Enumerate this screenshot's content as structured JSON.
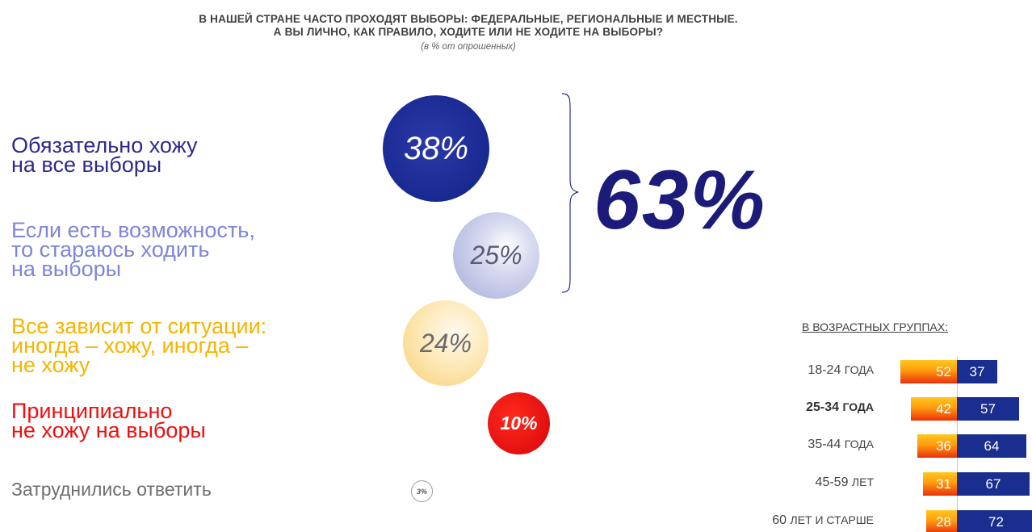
{
  "header": {
    "title_line1": "В нашей стране часто проходят выборы: федеральные, региональные и местные.",
    "title_line2": "А Вы лично, как правило, ходите или не ходите на выборы?",
    "subtitle": "(в % от опрошенных)"
  },
  "colors": {
    "dark_blue": "#1a2891",
    "light_blue": "#a6abd9",
    "yellow": "#f6cf73",
    "red": "#e31010",
    "gray": "#9a9a9a",
    "total_color": "#1c1b7a"
  },
  "chart_data": [
    {
      "type": "bubble",
      "categories": [
        "Обязательно хожу на все выборы",
        "Если есть возможность, то стараюсь ходить на выборы",
        "Все зависит от ситуации: иногда – хожу, иногда – не хожу",
        "Принципиально не хожу на выборы",
        "Затруднились ответить"
      ],
      "values": [
        38,
        25,
        24,
        10,
        3
      ],
      "value_labels": [
        "38%",
        "25%",
        "24%",
        "10%",
        "3%"
      ],
      "answer_texts": [
        "Обязательно хожу\nна все выборы",
        "Если есть возможность,\nто стараюсь ходить\nна выборы",
        "Все зависит от ситуации:\nиногда – хожу, иногда –\nне хожу",
        "Принципиально\nне хожу на выборы",
        "Затруднились ответить"
      ],
      "answer_colors": [
        "#2d2a8a",
        "#7e86d6",
        "#f5b400",
        "#ee1010",
        "#6f6f6f"
      ],
      "bracket_total": "63%"
    },
    {
      "type": "bar",
      "title": "в возрастных группах:",
      "categories": [
        {
          "num": "18-24",
          "unit": "года"
        },
        {
          "num": "25-34",
          "unit": "года"
        },
        {
          "num": "35-44",
          "unit": "года"
        },
        {
          "num": "45-59",
          "unit": "лет"
        },
        {
          "num": "60",
          "unit": "лет и старше"
        }
      ],
      "series": [
        {
          "values": [
            52,
            42,
            36,
            31,
            28
          ],
          "color": "#ff9b0f"
        },
        {
          "values": [
            37,
            57,
            64,
            67,
            72
          ],
          "color": "#1a2e8f"
        }
      ]
    }
  ]
}
